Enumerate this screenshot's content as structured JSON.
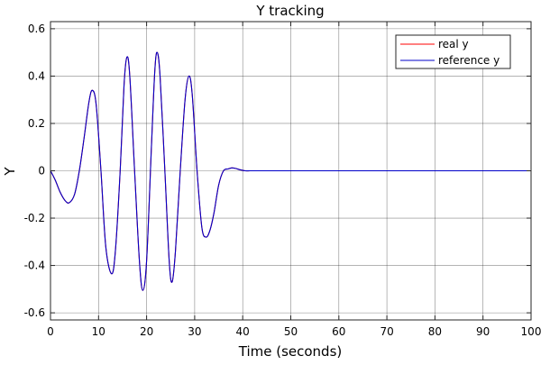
{
  "chart_data": {
    "type": "line",
    "title": "Y tracking",
    "xlabel": "Time (seconds)",
    "ylabel": "Y",
    "xlim": [
      0,
      100
    ],
    "ylim": [
      -0.63,
      0.63
    ],
    "xticks": [
      0,
      10,
      20,
      30,
      40,
      50,
      60,
      70,
      80,
      90,
      100
    ],
    "yticks": [
      0.6,
      0.4,
      0.2,
      0,
      -0.2,
      -0.4,
      -0.6
    ],
    "ytick_labels": [
      "0.6",
      "0.4",
      "0.2",
      "0",
      "-0.2",
      "-0.4",
      "-0.6"
    ],
    "grid": true,
    "legend_position": "top-right",
    "series": [
      {
        "name": "real y",
        "color": "#ff0000",
        "x": [
          0,
          1,
          2,
          3,
          3.9,
          5,
          6,
          7,
          8,
          8.7,
          9.5,
          10.5,
          11.5,
          12.7,
          13.5,
          14.5,
          15.3,
          15.9,
          16.5,
          17.5,
          18.5,
          19.2,
          20,
          21,
          21.7,
          22.2,
          22.8,
          23.8,
          24.7,
          25.3,
          26,
          27,
          28,
          28.8,
          29.5,
          30.5,
          31.5,
          32.4,
          33.2,
          34,
          35,
          36,
          37,
          37.7,
          38.5,
          39.5,
          40.5,
          41.5,
          43,
          50,
          60,
          70,
          80,
          90,
          100
        ],
        "y": [
          0,
          -0.04,
          -0.09,
          -0.125,
          -0.135,
          -0.1,
          0,
          0.14,
          0.29,
          0.34,
          0.28,
          0.0,
          -0.32,
          -0.435,
          -0.34,
          0.0,
          0.36,
          0.48,
          0.4,
          0.0,
          -0.38,
          -0.505,
          -0.38,
          0.1,
          0.42,
          0.5,
          0.4,
          0.0,
          -0.38,
          -0.47,
          -0.34,
          0.0,
          0.3,
          0.4,
          0.32,
          0.0,
          -0.24,
          -0.28,
          -0.25,
          -0.18,
          -0.06,
          0.0,
          0.008,
          0.012,
          0.01,
          0.004,
          0.0,
          0.0,
          0.0,
          0.0,
          0.0,
          0.0,
          0.0,
          0.0,
          0.0
        ]
      },
      {
        "name": "reference y",
        "color": "#0000c8",
        "x": [
          0,
          1,
          2,
          3,
          3.9,
          5,
          6,
          7,
          8,
          8.7,
          9.5,
          10.5,
          11.5,
          12.7,
          13.5,
          14.5,
          15.3,
          15.9,
          16.5,
          17.5,
          18.5,
          19.2,
          20,
          21,
          21.7,
          22.2,
          22.8,
          23.8,
          24.7,
          25.3,
          26,
          27,
          28,
          28.8,
          29.5,
          30.5,
          31.5,
          32.4,
          33.2,
          34,
          35,
          36,
          37,
          37.7,
          38.5,
          39.5,
          40.5,
          41.5,
          43,
          50,
          60,
          70,
          80,
          90,
          100
        ],
        "y": [
          0,
          -0.04,
          -0.09,
          -0.125,
          -0.135,
          -0.1,
          0,
          0.14,
          0.29,
          0.34,
          0.28,
          0.0,
          -0.32,
          -0.435,
          -0.34,
          0.0,
          0.36,
          0.48,
          0.4,
          0.0,
          -0.38,
          -0.505,
          -0.38,
          0.1,
          0.42,
          0.5,
          0.4,
          0.0,
          -0.38,
          -0.47,
          -0.34,
          0.0,
          0.3,
          0.4,
          0.32,
          0.0,
          -0.24,
          -0.28,
          -0.25,
          -0.18,
          -0.06,
          0.0,
          0.008,
          0.012,
          0.01,
          0.004,
          0.0,
          0.0,
          0.0,
          0.0,
          0.0,
          0.0,
          0.0,
          0.0,
          0.0
        ]
      }
    ]
  }
}
